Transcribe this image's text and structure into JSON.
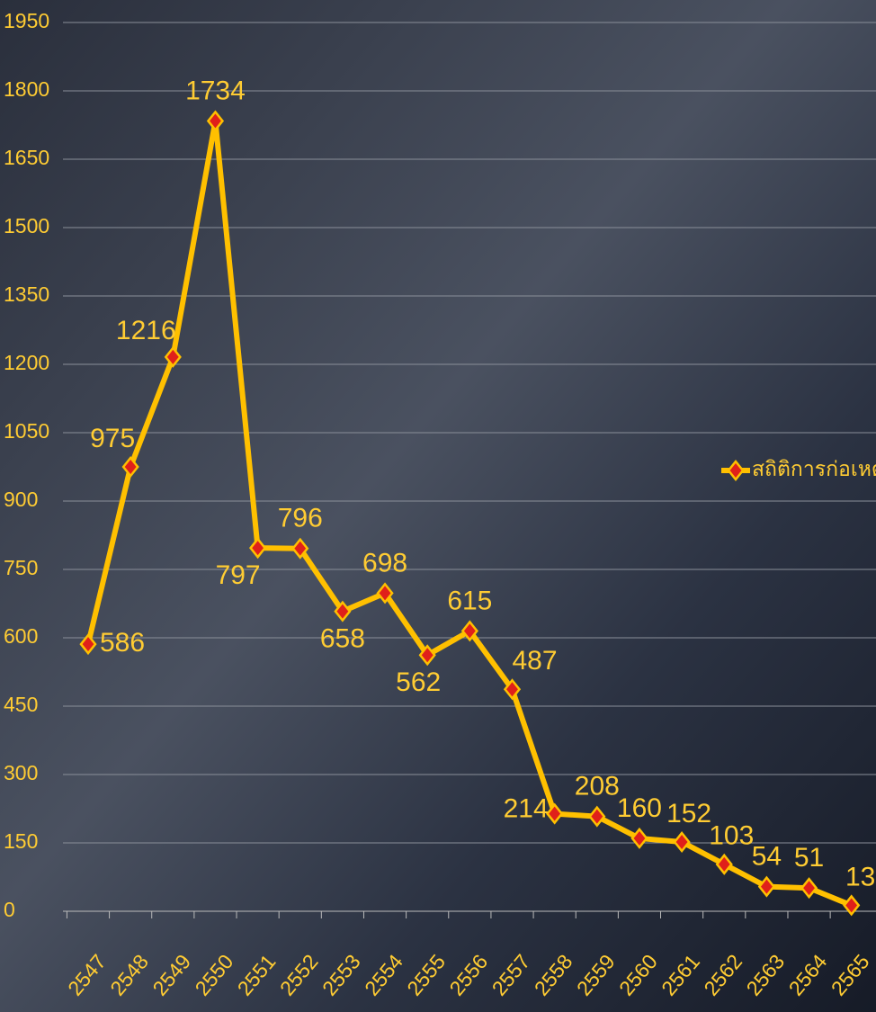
{
  "chart_data": {
    "type": "line",
    "categories": [
      "2547",
      "2548",
      "2549",
      "2550",
      "2551",
      "2552",
      "2553",
      "2554",
      "2555",
      "2556",
      "2557",
      "2558",
      "2559",
      "2560",
      "2561",
      "2562",
      "2563",
      "2564",
      "2565"
    ],
    "series": [
      {
        "name": "สถิติการก่อเหตุ",
        "color": "#ffc000",
        "values": [
          586,
          975,
          1216,
          1734,
          797,
          796,
          658,
          698,
          562,
          615,
          487,
          214,
          208,
          160,
          152,
          103,
          54,
          51,
          13
        ]
      }
    ],
    "ylim": [
      0,
      1950
    ],
    "yticks": [
      0,
      150,
      300,
      450,
      600,
      750,
      900,
      1050,
      1200,
      1350,
      1500,
      1650,
      1800,
      1950
    ],
    "grid": true,
    "legend": "right"
  }
}
